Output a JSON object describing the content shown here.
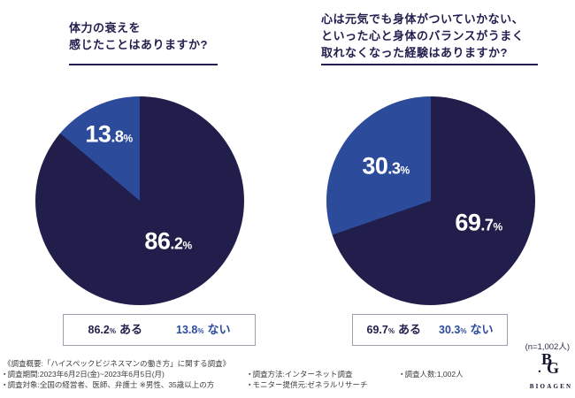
{
  "colors": {
    "navy": "#211e4b",
    "blue": "#2c4b9b",
    "title_text": "#232050",
    "legend_border": "#9b9fae",
    "footer_text": "#3d3d3d"
  },
  "charts": [
    {
      "title_lines": [
        "体力の衰えを",
        "感じたことはありますか?"
      ],
      "slices": [
        {
          "int": "86",
          "dec": ".2",
          "pct": "%",
          "label": "ある"
        },
        {
          "int": "13",
          "dec": ".8",
          "pct": "%",
          "label": "ない"
        }
      ],
      "legend": [
        {
          "num": "86.2",
          "pct": "%",
          "label": "ある"
        },
        {
          "num": "13.8",
          "pct": "%",
          "label": "ない"
        }
      ]
    },
    {
      "title_lines": [
        "心は元気でも身体がついていかない、",
        "といった心と身体のバランスがうまく",
        "取れなくなった経験はありますか?"
      ],
      "slices": [
        {
          "int": "69",
          "dec": ".7",
          "pct": "%",
          "label": "ある"
        },
        {
          "int": "30",
          "dec": ".3",
          "pct": "%",
          "label": "ない"
        }
      ],
      "legend": [
        {
          "num": "69.7",
          "pct": "%",
          "label": "ある"
        },
        {
          "num": "30.3",
          "pct": "%",
          "label": "ない"
        }
      ]
    }
  ],
  "chart_data": [
    {
      "type": "pie",
      "title": "体力の衰えを感じたことはありますか?",
      "labels": [
        "ある",
        "ない"
      ],
      "values": [
        86.2,
        13.8
      ],
      "unit": "%",
      "colors": [
        "#211e4b",
        "#2c4b9b"
      ],
      "start": "top",
      "minor_slice_direction": "counter-clockwise-from-top",
      "legend_position": "below-in-box"
    },
    {
      "type": "pie",
      "title": "心は元気でも身体がついていかない、といった心と身体のバランスがうまく取れなくなった経験はありますか?",
      "labels": [
        "ある",
        "ない"
      ],
      "values": [
        69.7,
        30.3
      ],
      "unit": "%",
      "colors": [
        "#211e4b",
        "#2c4b9b"
      ],
      "start": "top",
      "minor_slice_direction": "counter-clockwise-from-top",
      "legend_position": "below-in-box"
    }
  ],
  "note": {
    "sample": "(n=1,002人)"
  },
  "footer": {
    "bullet": "▪",
    "heading": "《調査概要:「ハイスペックビジネスマンの働き方」に関する調査》",
    "col1": [
      "調査期間:2023年6月2日(金)~2023年6月5日(月)",
      "調査対象:全国の経営者、医師、弁護士 ※男性、35歳以上の方"
    ],
    "col2": [
      "調査方法:インターネット調査",
      "モニター提供元:ゼネラルリサーチ"
    ],
    "col3": [
      "調査人数:1,002人"
    ]
  },
  "logo": {
    "monogram_top": "B",
    "monogram_bottom": "G",
    "monogram_dot": ".",
    "wordmark": "BIOAGEN"
  }
}
